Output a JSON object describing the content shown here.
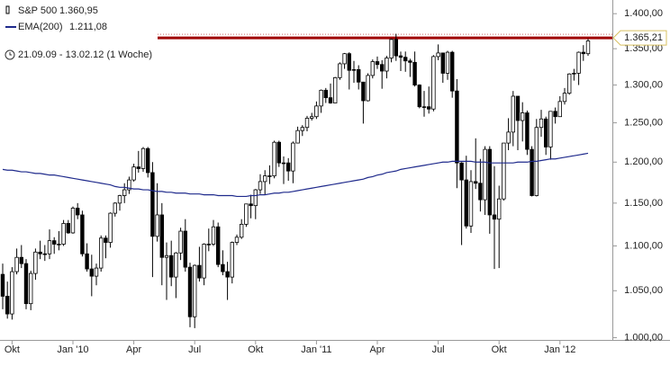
{
  "chart_data": {
    "type": "candlestick",
    "period": "21.09.09 - 13.02.12 (1 Woche)",
    "log_scale": true,
    "ylim": [
      982,
      1420
    ],
    "yticks": [
      {
        "value": 1000,
        "label": "1.000,00"
      },
      {
        "value": 1050,
        "label": "1.050,00"
      },
      {
        "value": 1100,
        "label": "1.100,00"
      },
      {
        "value": 1150,
        "label": "1.150,00"
      },
      {
        "value": 1200,
        "label": "1.200,00"
      },
      {
        "value": 1250,
        "label": "1.250,00"
      },
      {
        "value": 1300,
        "label": "1.300,00"
      },
      {
        "value": 1350,
        "label": "1.350,00"
      },
      {
        "value": 1400,
        "label": "1.400,00"
      }
    ],
    "reference_line": {
      "value": 1365.21,
      "label": "1.365,21",
      "color": "#a00000"
    },
    "categories": [
      null,
      null,
      "Okt",
      null,
      null,
      null,
      null,
      null,
      null,
      null,
      null,
      null,
      null,
      null,
      null,
      "Jan '10",
      null,
      null,
      null,
      null,
      null,
      null,
      null,
      null,
      null,
      null,
      null,
      null,
      "Apr",
      null,
      null,
      null,
      null,
      null,
      null,
      null,
      null,
      null,
      null,
      null,
      null,
      "Jul",
      null,
      null,
      null,
      null,
      null,
      null,
      null,
      null,
      null,
      null,
      null,
      null,
      "Okt",
      null,
      null,
      null,
      null,
      null,
      null,
      null,
      null,
      null,
      null,
      null,
      null,
      "Jan '11",
      null,
      null,
      null,
      null,
      null,
      null,
      null,
      null,
      null,
      null,
      null,
      null,
      "Apr",
      null,
      null,
      null,
      null,
      null,
      null,
      null,
      null,
      null,
      null,
      null,
      null,
      "Jul",
      null,
      null,
      null,
      null,
      null,
      null,
      null,
      null,
      null,
      null,
      null,
      null,
      "Okt",
      null,
      null,
      null,
      null,
      null,
      null,
      null,
      null,
      null,
      null,
      null,
      null,
      "Jan '12",
      null,
      null,
      null,
      null,
      null,
      null
    ],
    "series": [
      {
        "name": "S&P 500",
        "last_label": "1.360,95",
        "color": "#000000",
        "up_fill": "#ffffff",
        "ohlc": [
          [
            1068,
            1080,
            1030,
            1044
          ],
          [
            1044,
            1060,
            1020,
            1025
          ],
          [
            1025,
            1076,
            1019,
            1071
          ],
          [
            1071,
            1097,
            1068,
            1087
          ],
          [
            1087,
            1101,
            1075,
            1080
          ],
          [
            1080,
            1085,
            1030,
            1036
          ],
          [
            1036,
            1072,
            1029,
            1069
          ],
          [
            1069,
            1097,
            1062,
            1093
          ],
          [
            1093,
            1106,
            1085,
            1091
          ],
          [
            1091,
            1101,
            1083,
            1091
          ],
          [
            1091,
            1119,
            1085,
            1106
          ],
          [
            1106,
            1110,
            1091,
            1102
          ],
          [
            1102,
            1117,
            1095,
            1102
          ],
          [
            1102,
            1130,
            1100,
            1126
          ],
          [
            1126,
            1130,
            1114,
            1115
          ],
          [
            1115,
            1146,
            1114,
            1144
          ],
          [
            1144,
            1150,
            1131,
            1136
          ],
          [
            1136,
            1141,
            1088,
            1091
          ],
          [
            1091,
            1103,
            1071,
            1074
          ],
          [
            1074,
            1090,
            1044,
            1066
          ],
          [
            1066,
            1080,
            1056,
            1075
          ],
          [
            1075,
            1112,
            1071,
            1109
          ],
          [
            1109,
            1112,
            1086,
            1104
          ],
          [
            1104,
            1139,
            1098,
            1138
          ],
          [
            1138,
            1151,
            1134,
            1150
          ],
          [
            1150,
            1160,
            1141,
            1159
          ],
          [
            1159,
            1174,
            1150,
            1166
          ],
          [
            1166,
            1182,
            1161,
            1178
          ],
          [
            1178,
            1198,
            1176,
            1194
          ],
          [
            1194,
            1214,
            1187,
            1192
          ],
          [
            1192,
            1219,
            1188,
            1217
          ],
          [
            1217,
            1219,
            1181,
            1187
          ],
          [
            1187,
            1200,
            1065,
            1111
          ],
          [
            1111,
            1174,
            1105,
            1136
          ],
          [
            1136,
            1150,
            1056,
            1087
          ],
          [
            1087,
            1104,
            1040,
            1089
          ],
          [
            1089,
            1106,
            1055,
            1065
          ],
          [
            1065,
            1093,
            1042,
            1092
          ],
          [
            1092,
            1121,
            1084,
            1117
          ],
          [
            1117,
            1131,
            1071,
            1076
          ],
          [
            1076,
            1081,
            1011,
            1022
          ],
          [
            1022,
            1079,
            1010,
            1078
          ],
          [
            1078,
            1099,
            1060,
            1064
          ],
          [
            1064,
            1103,
            1056,
            1102
          ],
          [
            1102,
            1120,
            1094,
            1102
          ],
          [
            1102,
            1130,
            1100,
            1122
          ],
          [
            1122,
            1127,
            1076,
            1079
          ],
          [
            1079,
            1095,
            1067,
            1071
          ],
          [
            1071,
            1082,
            1040,
            1065
          ],
          [
            1065,
            1105,
            1058,
            1104
          ],
          [
            1104,
            1113,
            1101,
            1110
          ],
          [
            1110,
            1131,
            1108,
            1125
          ],
          [
            1125,
            1149,
            1122,
            1149
          ],
          [
            1149,
            1160,
            1132,
            1147
          ],
          [
            1147,
            1167,
            1131,
            1166
          ],
          [
            1166,
            1185,
            1161,
            1176
          ],
          [
            1176,
            1190,
            1160,
            1183
          ],
          [
            1183,
            1196,
            1173,
            1183
          ],
          [
            1183,
            1227,
            1180,
            1225
          ],
          [
            1225,
            1227,
            1194,
            1199
          ],
          [
            1199,
            1207,
            1173,
            1199
          ],
          [
            1199,
            1205,
            1177,
            1189
          ],
          [
            1189,
            1226,
            1174,
            1224
          ],
          [
            1224,
            1245,
            1224,
            1240
          ],
          [
            1240,
            1247,
            1233,
            1244
          ],
          [
            1244,
            1259,
            1239,
            1256
          ],
          [
            1256,
            1263,
            1253,
            1258
          ],
          [
            1258,
            1278,
            1255,
            1272
          ],
          [
            1272,
            1294,
            1263,
            1293
          ],
          [
            1293,
            1296,
            1276,
            1283
          ],
          [
            1283,
            1302,
            1275,
            1276
          ],
          [
            1276,
            1311,
            1276,
            1310
          ],
          [
            1310,
            1331,
            1307,
            1329
          ],
          [
            1329,
            1344,
            1322,
            1343
          ],
          [
            1343,
            1345,
            1294,
            1320
          ],
          [
            1320,
            1333,
            1303,
            1321
          ],
          [
            1321,
            1327,
            1294,
            1304
          ],
          [
            1304,
            1304,
            1249,
            1279
          ],
          [
            1279,
            1316,
            1278,
            1313
          ],
          [
            1313,
            1335,
            1309,
            1332
          ],
          [
            1332,
            1339,
            1322,
            1328
          ],
          [
            1328,
            1334,
            1295,
            1319
          ],
          [
            1319,
            1340,
            1309,
            1337
          ],
          [
            1337,
            1364,
            1331,
            1363
          ],
          [
            1363,
            1371,
            1333,
            1340
          ],
          [
            1340,
            1346,
            1319,
            1338
          ],
          [
            1338,
            1346,
            1318,
            1333
          ],
          [
            1333,
            1336,
            1311,
            1331
          ],
          [
            1331,
            1346,
            1298,
            1300
          ],
          [
            1300,
            1301,
            1269,
            1271
          ],
          [
            1271,
            1292,
            1258,
            1271
          ],
          [
            1271,
            1298,
            1262,
            1268
          ],
          [
            1268,
            1341,
            1265,
            1339
          ],
          [
            1339,
            1356,
            1334,
            1344
          ],
          [
            1344,
            1344,
            1303,
            1316
          ],
          [
            1316,
            1347,
            1307,
            1345
          ],
          [
            1345,
            1347,
            1283,
            1292
          ],
          [
            1292,
            1308,
            1168,
            1199
          ],
          [
            1199,
            1200,
            1101,
            1178
          ],
          [
            1178,
            1208,
            1120,
            1123
          ],
          [
            1123,
            1190,
            1115,
            1176
          ],
          [
            1176,
            1230,
            1167,
            1174
          ],
          [
            1174,
            1204,
            1140,
            1154
          ],
          [
            1154,
            1220,
            1136,
            1216
          ],
          [
            1216,
            1220,
            1114,
            1136
          ],
          [
            1136,
            1195,
            1074,
            1131
          ],
          [
            1131,
            1171,
            1075,
            1155
          ],
          [
            1155,
            1224,
            1153,
            1224
          ],
          [
            1224,
            1256,
            1215,
            1238
          ],
          [
            1238,
            1292,
            1220,
            1285
          ],
          [
            1285,
            1285,
            1215,
            1253
          ],
          [
            1253,
            1277,
            1226,
            1263
          ],
          [
            1263,
            1266,
            1209,
            1216
          ],
          [
            1216,
            1220,
            1158,
            1159
          ],
          [
            1159,
            1255,
            1158,
            1244
          ],
          [
            1244,
            1267,
            1232,
            1255
          ],
          [
            1255,
            1258,
            1209,
            1219
          ],
          [
            1219,
            1265,
            1203,
            1265
          ],
          [
            1265,
            1270,
            1249,
            1258
          ],
          [
            1258,
            1285,
            1258,
            1278
          ],
          [
            1278,
            1296,
            1274,
            1289
          ],
          [
            1289,
            1316,
            1287,
            1315
          ],
          [
            1315,
            1322,
            1306,
            1316
          ],
          [
            1316,
            1346,
            1300,
            1345
          ],
          [
            1345,
            1355,
            1333,
            1343
          ],
          [
            1343,
            1364,
            1340,
            1360.95
          ]
        ]
      },
      {
        "name": "EMA(200)",
        "last_label": "1.211,08",
        "color": "#1f2a8c",
        "values": [
          1191,
          1190,
          1190,
          1189,
          1188,
          1188,
          1187,
          1186,
          1186,
          1185,
          1184,
          1184,
          1183,
          1182,
          1181,
          1180,
          1179,
          1178,
          1177,
          1176,
          1175,
          1174,
          1173,
          1172,
          1170,
          1169,
          1169,
          1168,
          1167,
          1167,
          1166,
          1166,
          1165,
          1164,
          1164,
          1163,
          1163,
          1162,
          1162,
          1162,
          1161,
          1161,
          1161,
          1160,
          1160,
          1160,
          1159,
          1159,
          1159,
          1159,
          1158,
          1158,
          1158,
          1159,
          1159,
          1160,
          1160,
          1161,
          1162,
          1162,
          1163,
          1163,
          1164,
          1165,
          1166,
          1167,
          1168,
          1169,
          1170,
          1171,
          1172,
          1173,
          1174,
          1175,
          1176,
          1177,
          1178,
          1179,
          1181,
          1182,
          1184,
          1185,
          1187,
          1188,
          1189,
          1191,
          1192,
          1193,
          1194,
          1195,
          1196,
          1197,
          1198,
          1199,
          1200,
          1200,
          1201,
          1201,
          1201,
          1201,
          1201,
          1200,
          1200,
          1200,
          1199,
          1199,
          1199,
          1199,
          1199,
          1199,
          1200,
          1200,
          1200,
          1201,
          1201,
          1202,
          1203,
          1204,
          1204,
          1205,
          1206,
          1207,
          1208,
          1209,
          1210,
          1211.08
        ]
      }
    ]
  }
}
